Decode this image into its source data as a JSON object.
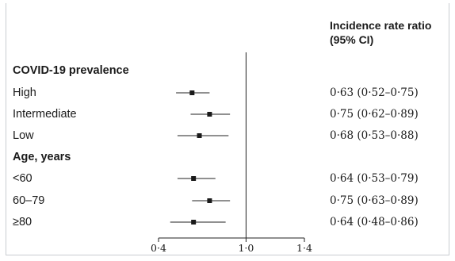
{
  "chart_data": {
    "type": "forest",
    "column_header": "Incidence rate ratio (95% CI)",
    "column_header_lines": [
      "Incidence rate ratio",
      "(95% CI)"
    ],
    "reference_value": 1.0,
    "xlim": [
      0.4,
      1.4
    ],
    "x_ticks": [
      0.4,
      1.0,
      1.4
    ],
    "x_tick_labels": [
      "0·4",
      "1·0",
      "1·4"
    ],
    "groups": [
      {
        "title": "COVID-19 prevalence",
        "rows": [
          {
            "label": "High",
            "estimate": 0.63,
            "lower": 0.52,
            "upper": 0.75,
            "ci_text": "0·63 (0·52–0·75)"
          },
          {
            "label": "Intermediate",
            "estimate": 0.75,
            "lower": 0.62,
            "upper": 0.89,
            "ci_text": "0·75 (0·62–0·89)"
          },
          {
            "label": "Low",
            "estimate": 0.68,
            "lower": 0.53,
            "upper": 0.88,
            "ci_text": "0·68 (0·53–0·88)"
          }
        ]
      },
      {
        "title": "Age, years",
        "rows": [
          {
            "label": "<60",
            "estimate": 0.64,
            "lower": 0.53,
            "upper": 0.79,
            "ci_text": "0·64 (0·53–0·79)"
          },
          {
            "label": "60–79",
            "estimate": 0.75,
            "lower": 0.63,
            "upper": 0.89,
            "ci_text": "0·75 (0·63–0·89)"
          },
          {
            "label": "≥80",
            "estimate": 0.64,
            "lower": 0.48,
            "upper": 0.86,
            "ci_text": "0·64 (0·48–0·86)"
          }
        ]
      }
    ]
  }
}
